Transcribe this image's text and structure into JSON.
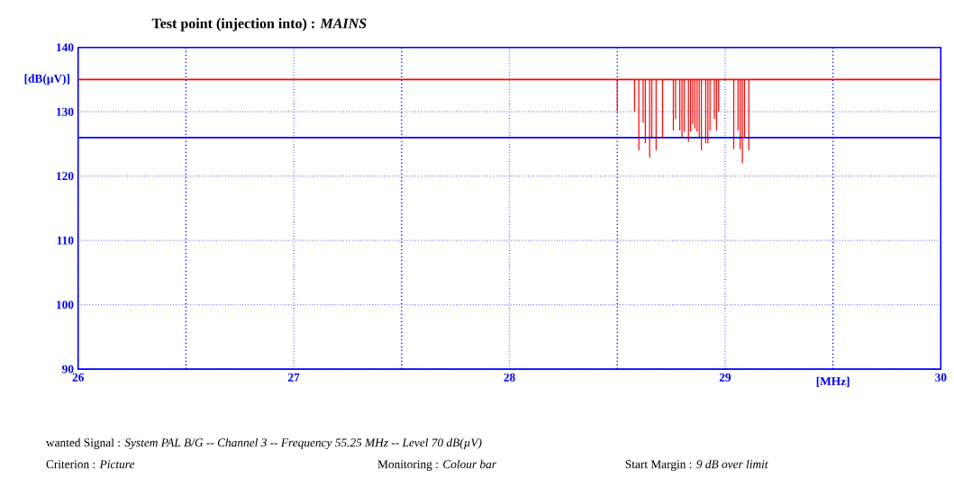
{
  "chart_data": {
    "type": "bar",
    "title": "Test point (injection into) :  *MAINS*",
    "xlabel": "[MHz]",
    "ylabel": "[dB(µV)]",
    "x": [
      28.5,
      28.58,
      28.6,
      28.62,
      28.63,
      28.65,
      28.66,
      28.68,
      28.71,
      28.76,
      28.77,
      28.79,
      28.8,
      28.81,
      28.83,
      28.84,
      28.85,
      28.86,
      28.87,
      28.88,
      28.89,
      28.91,
      28.92,
      28.93,
      28.95,
      28.96,
      28.97,
      29.04,
      29.06,
      29.07,
      29.08,
      29.09,
      29.11
    ],
    "base": [
      135,
      135,
      135,
      135,
      135,
      135,
      135,
      135,
      135,
      135,
      135,
      135,
      135,
      135,
      135,
      135,
      135,
      135,
      135,
      135,
      135,
      135,
      135,
      135,
      135,
      135,
      135,
      135,
      135,
      135,
      135,
      135,
      135
    ],
    "values": [
      -5,
      -5,
      -11,
      -6.7,
      -9.9,
      -12.1,
      -9.1,
      -11,
      -9.1,
      -7.9,
      -6.1,
      -7.9,
      -8.9,
      -8.1,
      -9.7,
      -8.1,
      -6.9,
      -7.6,
      -8.1,
      -9.1,
      -11,
      -9.9,
      -9.9,
      -7.9,
      -6.1,
      -7.9,
      -5,
      -10.8,
      -7.9,
      -10.8,
      -13,
      -8.9,
      -11
    ],
    "color": "#ff0000",
    "xlim": [
      26,
      30
    ],
    "ylim": [
      90,
      140
    ],
    "xticks": [
      26,
      27,
      28,
      29,
      30
    ],
    "yticks": [
      90,
      100,
      110,
      120,
      130,
      140
    ],
    "grid": true,
    "ref_lines": [
      {
        "axis": "y",
        "value": 135,
        "color": "#ff0000"
      },
      {
        "axis": "y",
        "value": 126,
        "color": "#0000ff"
      }
    ],
    "annotations": [
      "wanted Signal : *System PAL B/G -- Channel 3 -- Frequency 55.25 MHz -- Level 70 dB(µV)*",
      "Criterion : *Picture*",
      "Monitoring : *Colour bar*",
      "Start Margin : *9 dB over limit*"
    ]
  }
}
